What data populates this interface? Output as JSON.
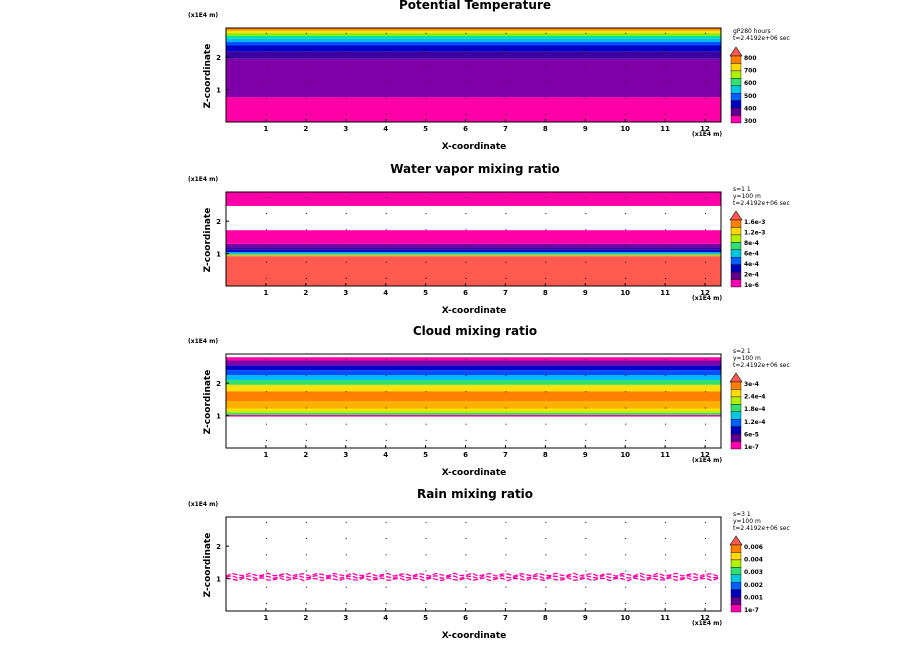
{
  "chart_data": [
    {
      "type": "heatmap",
      "title": "Potential Temperature",
      "xlabel": "X-coordinate",
      "ylabel": "Z-coordinate",
      "x_unit": "(x1E4 m)",
      "z_unit": "(x1E4 m)",
      "xlim": [
        0,
        12.4
      ],
      "zlim": [
        0,
        2.9
      ],
      "x_ticks": [
        "1",
        "2",
        "3",
        "4",
        "5",
        "6",
        "7",
        "8",
        "9",
        "10",
        "11",
        "12"
      ],
      "z_ticks": [
        "1",
        "2"
      ],
      "info": [
        "gP280 hours",
        "t=2.4192e+06 sec"
      ],
      "colorbar": {
        "labels": [
          "800",
          "700",
          "600",
          "500",
          "400",
          "300"
        ],
        "colors": [
          "#ff7f00",
          "#ffd800",
          "#b0f000",
          "#30e070",
          "#00c8e0",
          "#0060ff",
          "#0000c0",
          "#600090",
          "#ff00b0"
        ],
        "arrow_color": "#ff5a50"
      },
      "bands": [
        {
          "z0": 0.0,
          "z1": 0.77,
          "color": "#ff00a8"
        },
        {
          "z0": 0.77,
          "z1": 1.95,
          "color": "#7f00a8"
        },
        {
          "z0": 1.95,
          "z1": 2.18,
          "color": "#3a00a0"
        },
        {
          "z0": 2.18,
          "z1": 2.36,
          "color": "#0000c8"
        },
        {
          "z0": 2.36,
          "z1": 2.47,
          "color": "#0050ff"
        },
        {
          "z0": 2.47,
          "z1": 2.57,
          "color": "#00b8ff"
        },
        {
          "z0": 2.57,
          "z1": 2.66,
          "color": "#00e0a0"
        },
        {
          "z0": 2.66,
          "z1": 2.74,
          "color": "#80f000"
        },
        {
          "z0": 2.74,
          "z1": 2.82,
          "color": "#ffe000"
        },
        {
          "z0": 2.82,
          "z1": 2.9,
          "color": "#ff9000"
        }
      ],
      "scatter_lines": []
    },
    {
      "type": "heatmap",
      "title": "Water vapor mixing ratio",
      "xlabel": "X-coordinate",
      "ylabel": "Z-coordinate",
      "x_unit": "(x1E4 m)",
      "z_unit": "(x1E4 m)",
      "xlim": [
        0,
        12.4
      ],
      "zlim": [
        0,
        2.9
      ],
      "x_ticks": [
        "1",
        "2",
        "3",
        "4",
        "5",
        "6",
        "7",
        "8",
        "9",
        "10",
        "11",
        "12"
      ],
      "z_ticks": [
        "1",
        "2"
      ],
      "info": [
        "s=1 1",
        "y=100 m",
        "t=2.4192e+06 sec"
      ],
      "colorbar": {
        "labels": [
          "1.6e-3",
          "1.2e-3",
          "8e-4",
          "6e-4",
          "4e-4",
          "2e-4",
          "1e-6"
        ],
        "colors": [
          "#ff7f00",
          "#ffd800",
          "#b0f000",
          "#30e070",
          "#00c8e0",
          "#0060ff",
          "#0000c0",
          "#600090",
          "#ff00b0"
        ],
        "arrow_color": "#ff5a50"
      },
      "bands": [
        {
          "z0": 0.0,
          "z1": 0.92,
          "color": "#ff5a50"
        },
        {
          "z0": 0.92,
          "z1": 0.96,
          "color": "#ffb000"
        },
        {
          "z0": 0.96,
          "z1": 1.0,
          "color": "#30e070"
        },
        {
          "z0": 1.0,
          "z1": 1.05,
          "color": "#00a0ff"
        },
        {
          "z0": 1.05,
          "z1": 1.12,
          "color": "#0000c8"
        },
        {
          "z0": 1.12,
          "z1": 1.2,
          "color": "#3a00a0"
        },
        {
          "z0": 1.2,
          "z1": 1.3,
          "color": "#7f00a8"
        },
        {
          "z0": 1.3,
          "z1": 1.72,
          "color": "#ff00a8"
        },
        {
          "z0": 2.47,
          "z1": 2.9,
          "color": "#ff00a8"
        }
      ],
      "scatter_lines": []
    },
    {
      "type": "heatmap",
      "title": "Cloud mixing ratio",
      "xlabel": "X-coordinate",
      "ylabel": "Z-coordinate",
      "x_unit": "(x1E4 m)",
      "z_unit": "(x1E4 m)",
      "xlim": [
        0,
        12.4
      ],
      "zlim": [
        0,
        2.9
      ],
      "x_ticks": [
        "1",
        "2",
        "3",
        "4",
        "5",
        "6",
        "7",
        "8",
        "9",
        "10",
        "11",
        "12"
      ],
      "z_ticks": [
        "1",
        "2"
      ],
      "info": [
        "s=2 1",
        "y=100 m",
        "t=2.4192e+06 sec"
      ],
      "colorbar": {
        "labels": [
          "3e-4",
          "2.4e-4",
          "1.8e-4",
          "1.2e-4",
          "6e-5",
          "1e-7"
        ],
        "colors": [
          "#ff7f00",
          "#ffd800",
          "#b0f000",
          "#30e070",
          "#00c8e0",
          "#0060ff",
          "#0000c0",
          "#600090",
          "#ff00b0"
        ],
        "arrow_color": "#ff5a50"
      },
      "bands": [
        {
          "z0": 0.97,
          "z1": 1.02,
          "color": "#ff00a8"
        },
        {
          "z0": 1.02,
          "z1": 1.08,
          "color": "#30e070"
        },
        {
          "z0": 1.08,
          "z1": 1.14,
          "color": "#b0f000"
        },
        {
          "z0": 1.14,
          "z1": 1.22,
          "color": "#ffe000"
        },
        {
          "z0": 1.22,
          "z1": 1.45,
          "color": "#ffb000"
        },
        {
          "z0": 1.45,
          "z1": 1.75,
          "color": "#ff7f00"
        },
        {
          "z0": 1.75,
          "z1": 1.95,
          "color": "#ffe000"
        },
        {
          "z0": 1.95,
          "z1": 2.1,
          "color": "#30e070"
        },
        {
          "z0": 2.1,
          "z1": 2.25,
          "color": "#00b8ff"
        },
        {
          "z0": 2.25,
          "z1": 2.4,
          "color": "#0050ff"
        },
        {
          "z0": 2.4,
          "z1": 2.55,
          "color": "#0000c8"
        },
        {
          "z0": 2.55,
          "z1": 2.7,
          "color": "#7f00a8"
        },
        {
          "z0": 2.7,
          "z1": 2.8,
          "color": "#ff00a8"
        }
      ],
      "scatter_lines": []
    },
    {
      "type": "heatmap",
      "title": "Rain mixing ratio",
      "xlabel": "X-coordinate",
      "ylabel": "Z-coordinate",
      "x_unit": "(x1E4 m)",
      "z_unit": "(x1E4 m)",
      "xlim": [
        0,
        12.4
      ],
      "zlim": [
        0,
        2.9
      ],
      "x_ticks": [
        "1",
        "2",
        "3",
        "4",
        "5",
        "6",
        "7",
        "8",
        "9",
        "10",
        "11",
        "12"
      ],
      "z_ticks": [
        "1",
        "2"
      ],
      "info": [
        "s=3 1",
        "y=100 m",
        "t=2.4192e+06 sec"
      ],
      "colorbar": {
        "labels": [
          "0.006",
          "0.004",
          "0.003",
          "0.002",
          "0.001",
          "1e-7"
        ],
        "colors": [
          "#ff7f00",
          "#ffd800",
          "#b0f000",
          "#30e070",
          "#00c8e0",
          "#0060ff",
          "#0000c0",
          "#600090",
          "#ff00b0"
        ],
        "arrow_color": "#ff5a50"
      },
      "bands": [],
      "scatter_lines": [
        {
          "z": 1.12,
          "color": "#ff00a8"
        },
        {
          "z": 1.05,
          "color": "#ff00a8"
        },
        {
          "z": 0.98,
          "color": "#ff00a8"
        }
      ]
    }
  ]
}
